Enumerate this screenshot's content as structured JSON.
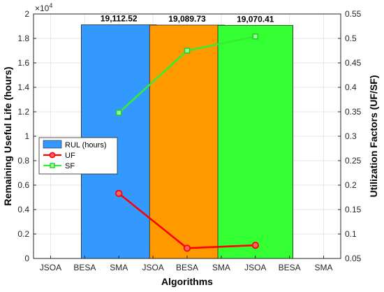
{
  "chart_data": {
    "type": "bar",
    "categories": [
      "JSOA",
      "BESA",
      "SMA",
      "JSOA",
      "BESA",
      "SMA",
      "JSOA",
      "BESA",
      "SMA"
    ],
    "series": [
      {
        "name": "RUL (hours)",
        "type": "bar",
        "axis": "left",
        "color": "#3399ff",
        "points": [
          {
            "category_index": 2,
            "y": 19112.52,
            "label": "19,112.52",
            "color": "#3399ff"
          },
          {
            "category_index": 4,
            "y": 19089.73,
            "label": "19,089.73",
            "color": "#ff9900"
          },
          {
            "category_index": 6,
            "y": 19070.41,
            "label": "19,070.41",
            "color": "#33ff33"
          }
        ]
      },
      {
        "name": "UF",
        "type": "line",
        "axis": "right",
        "color": "#ff0000",
        "marker": "circle",
        "points": [
          {
            "category_index": 2,
            "y": 0.183
          },
          {
            "category_index": 4,
            "y": 0.071
          },
          {
            "category_index": 6,
            "y": 0.077
          }
        ]
      },
      {
        "name": "SF",
        "type": "line",
        "axis": "right",
        "color": "#33ee33",
        "marker": "square",
        "points": [
          {
            "category_index": 2,
            "y": 0.348
          },
          {
            "category_index": 4,
            "y": 0.475
          },
          {
            "category_index": 6,
            "y": 0.504
          }
        ]
      }
    ],
    "xlabel": "Algorithms",
    "ylabel_left": "Remaining Useful Life (hours)",
    "ylabel_right": "Utilization Factors (UF/SF)",
    "ylim_left": [
      0,
      20000
    ],
    "ylim_right": [
      0.05,
      0.55
    ],
    "yticks_left": [
      "0",
      "0.2",
      "0.4",
      "0.6",
      "0.8",
      "1",
      "1.2",
      "1.4",
      "1.6",
      "1.8",
      "2"
    ],
    "yticks_left_multiplier": "×10",
    "yticks_left_exponent": "4",
    "yticks_right": [
      "0.05",
      "0.1",
      "0.15",
      "0.2",
      "0.25",
      "0.3",
      "0.35",
      "0.4",
      "0.45",
      "0.5",
      "0.55"
    ],
    "grid": true,
    "legend_position": "middle-left"
  }
}
